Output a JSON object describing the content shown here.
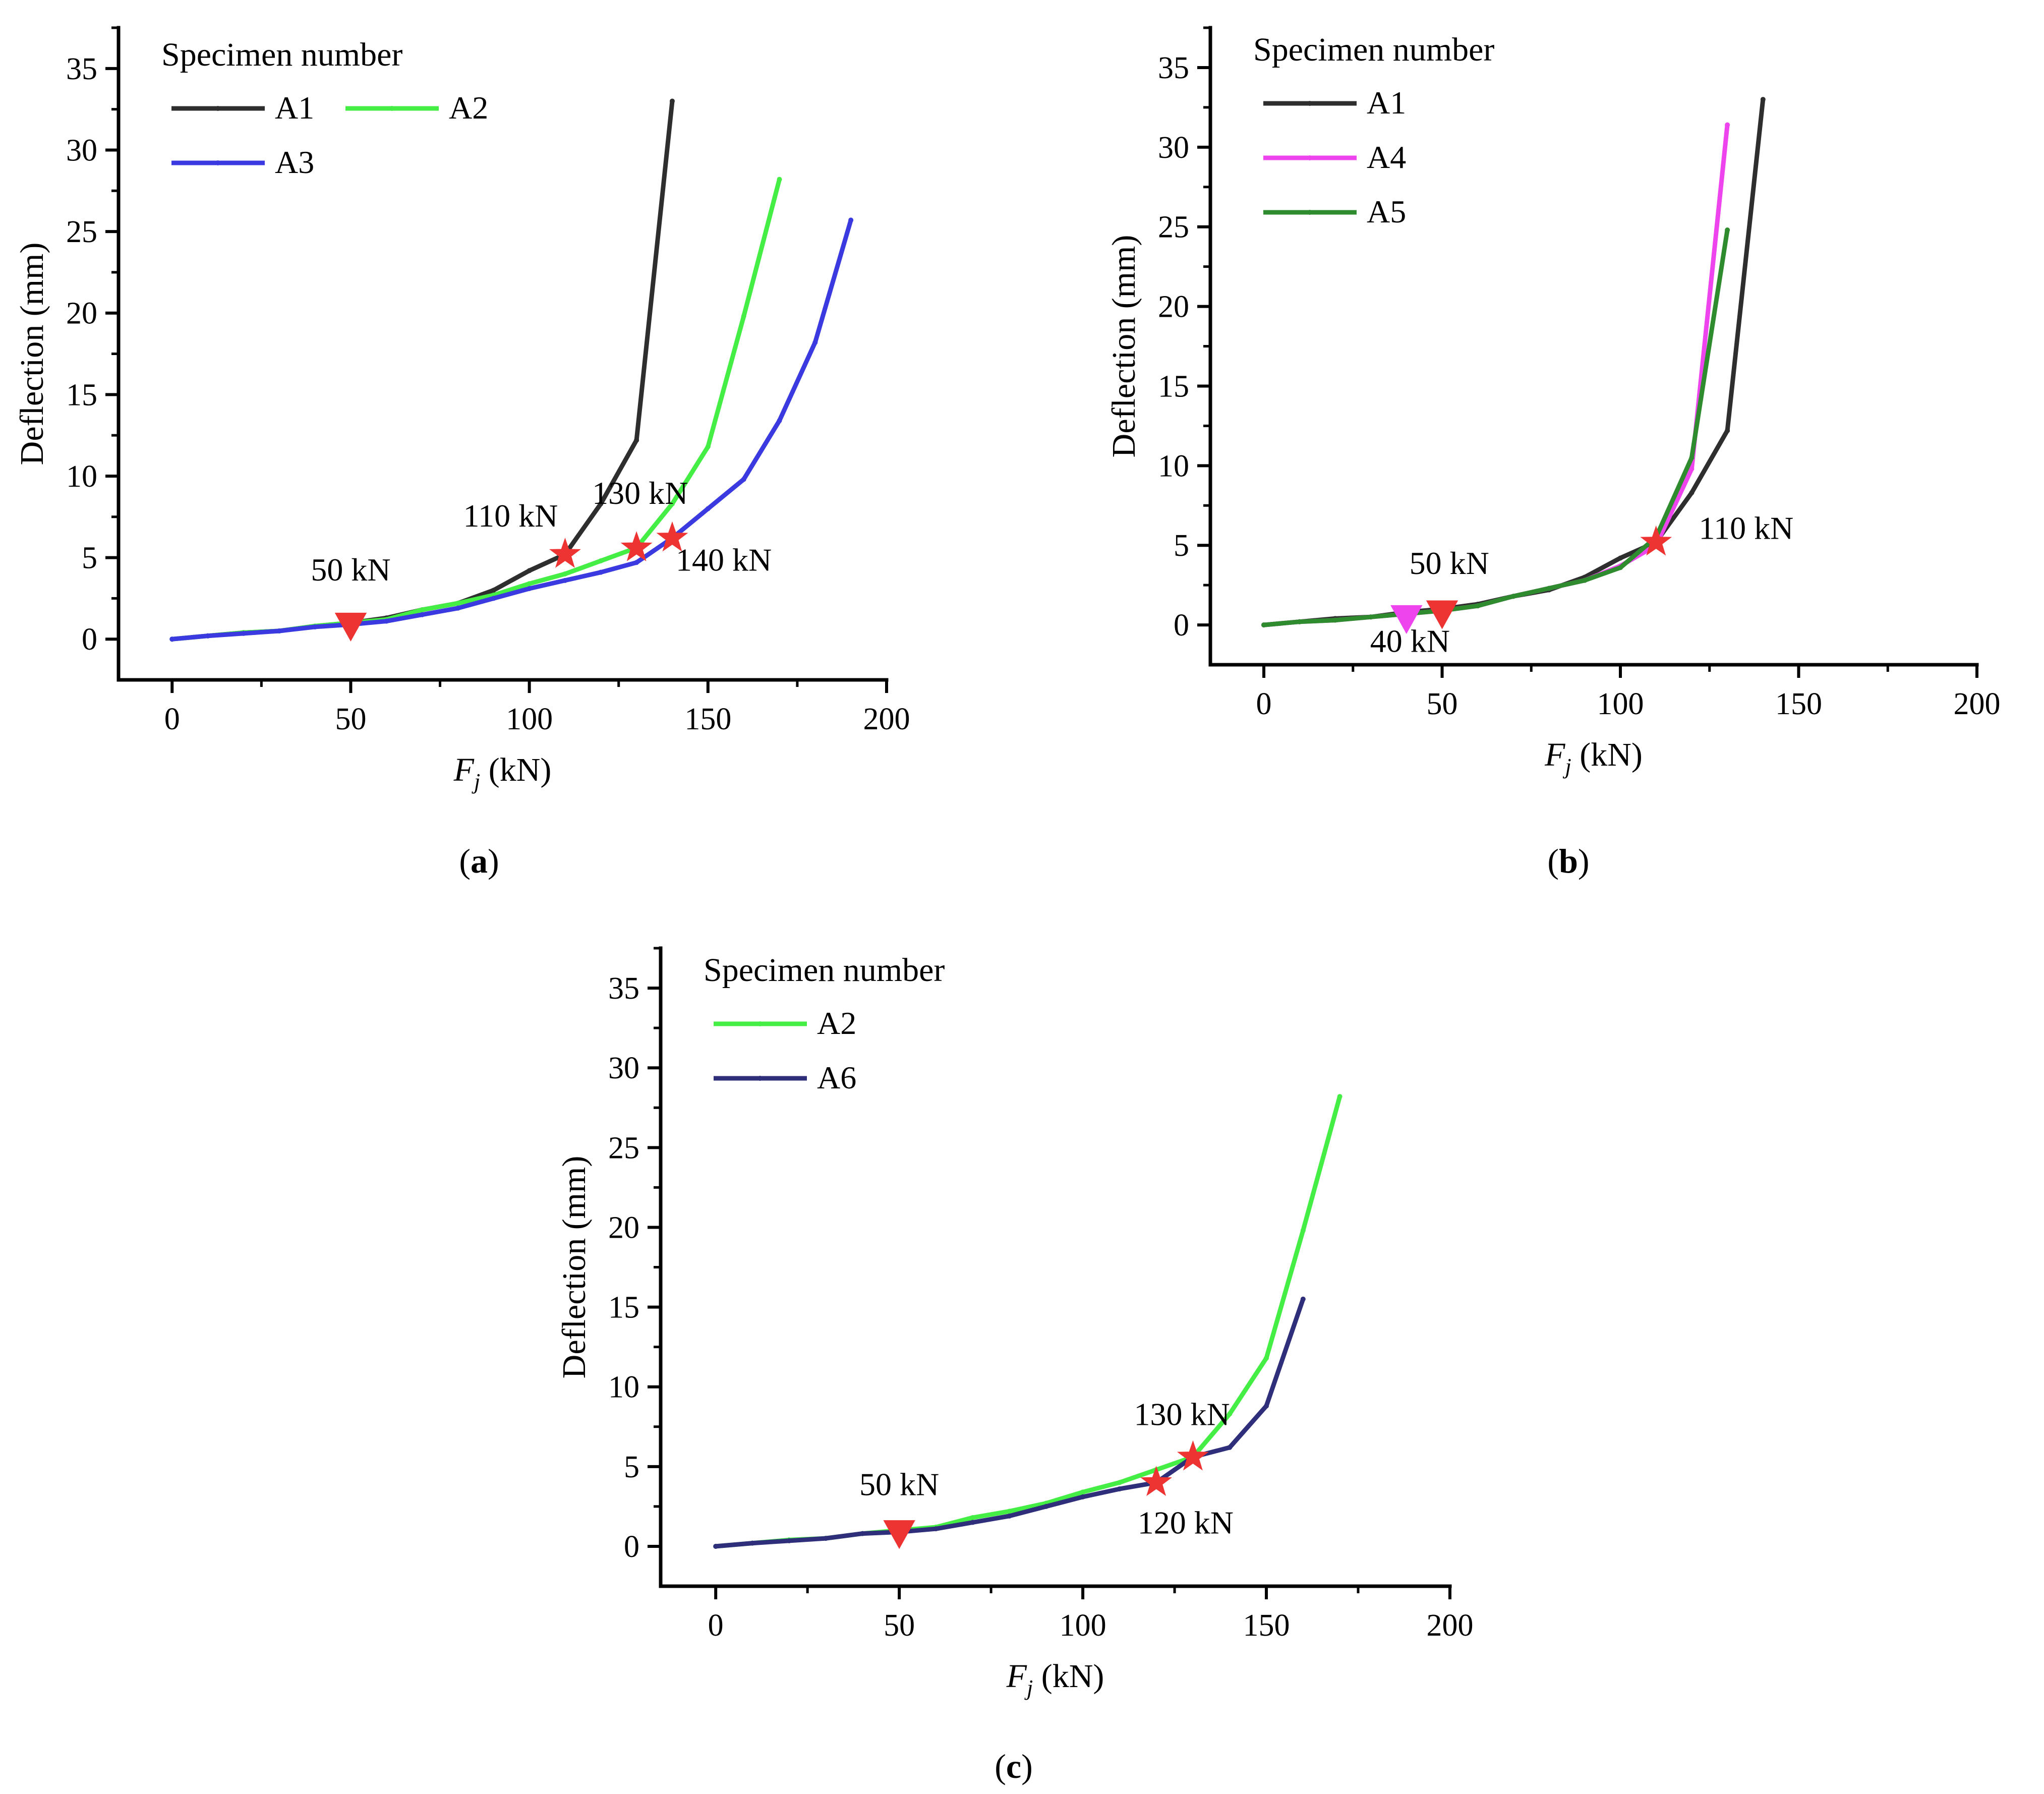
{
  "chart_data": [
    {
      "type": "line",
      "panel_label": "(a)",
      "panel_letter": "a",
      "xlabel": "Fj (kN)",
      "xlabel_var": "F",
      "xlabel_sub": "j",
      "xlabel_unit": " (kN)",
      "ylabel": "Deflection (mm)",
      "xlim": [
        -15,
        200
      ],
      "ylim": [
        -2.5,
        37.5
      ],
      "xticks": [
        0,
        50,
        100,
        150,
        200
      ],
      "yticks": [
        0,
        5,
        10,
        15,
        20,
        25,
        30,
        35
      ],
      "legend_title": "Specimen number",
      "legend_position": "top-left",
      "series": [
        {
          "name": "A1",
          "color": "#2e2e2e",
          "x": [
            0,
            10,
            20,
            30,
            40,
            50,
            60,
            70,
            80,
            90,
            100,
            110,
            120,
            130,
            140
          ],
          "y": [
            0,
            0.2,
            0.4,
            0.5,
            0.8,
            1.0,
            1.3,
            1.8,
            2.2,
            3.0,
            4.2,
            5.2,
            8.3,
            12.2,
            33.0
          ]
        },
        {
          "name": "A2",
          "color": "#44ee44",
          "x": [
            0,
            10,
            20,
            30,
            40,
            50,
            60,
            70,
            80,
            90,
            100,
            110,
            120,
            130,
            140,
            150,
            160,
            170
          ],
          "y": [
            0,
            0.2,
            0.4,
            0.5,
            0.8,
            1.0,
            1.2,
            1.8,
            2.2,
            2.7,
            3.4,
            4.0,
            4.8,
            5.6,
            8.3,
            11.8,
            19.8,
            28.2
          ]
        },
        {
          "name": "A3",
          "color": "#3a3ae0",
          "x": [
            0,
            10,
            20,
            30,
            40,
            50,
            60,
            70,
            80,
            90,
            100,
            110,
            120,
            130,
            140,
            150,
            160,
            170,
            180,
            190
          ],
          "y": [
            0,
            0.2,
            0.35,
            0.5,
            0.75,
            0.9,
            1.1,
            1.5,
            1.9,
            2.5,
            3.1,
            3.6,
            4.1,
            4.7,
            6.2,
            8.0,
            9.8,
            13.4,
            18.2,
            25.7
          ]
        }
      ],
      "markers": [
        {
          "shape": "triangle",
          "x": 50,
          "y": 0.8,
          "label": "50 kN",
          "label_x": 50,
          "label_y": 3.6,
          "anchor": "middle"
        },
        {
          "shape": "star",
          "x": 110,
          "y": 5.2,
          "label": "110 kN",
          "label_x": 108,
          "label_y": 6.9,
          "anchor": "end"
        },
        {
          "shape": "star",
          "x": 130,
          "y": 5.6,
          "label": "130 kN",
          "label_x": 131,
          "label_y": 8.3,
          "anchor": "middle"
        },
        {
          "shape": "star",
          "x": 140,
          "y": 6.2,
          "label": "140 kN",
          "label_x": 141,
          "label_y": 4.2,
          "anchor": "start"
        }
      ]
    },
    {
      "type": "line",
      "panel_label": "(b)",
      "panel_letter": "b",
      "xlabel": "Fj (kN)",
      "xlabel_var": "F",
      "xlabel_sub": "j",
      "xlabel_unit": " (kN)",
      "ylabel": "Deflection (mm)",
      "xlim": [
        -15,
        200
      ],
      "ylim": [
        -2.5,
        37.5
      ],
      "xticks": [
        0,
        50,
        100,
        150,
        200
      ],
      "yticks": [
        0,
        5,
        10,
        15,
        20,
        25,
        30,
        35
      ],
      "legend_title": "Specimen number",
      "legend_position": "top-left",
      "series": [
        {
          "name": "A1",
          "color": "#2e2e2e",
          "x": [
            0,
            10,
            20,
            30,
            40,
            50,
            60,
            70,
            80,
            90,
            100,
            110,
            120,
            130,
            140
          ],
          "y": [
            0,
            0.2,
            0.4,
            0.5,
            0.8,
            1.0,
            1.3,
            1.8,
            2.2,
            3.0,
            4.2,
            5.2,
            8.3,
            12.2,
            33.0
          ]
        },
        {
          "name": "A4",
          "color": "#ee44ee",
          "x": [
            0,
            10,
            20,
            30,
            40,
            50,
            60,
            70,
            80,
            90,
            100,
            110,
            120,
            130
          ],
          "y": [
            0,
            0.2,
            0.3,
            0.5,
            0.7,
            0.9,
            1.2,
            1.8,
            2.3,
            2.8,
            3.7,
            5.0,
            9.8,
            31.4
          ]
        },
        {
          "name": "A5",
          "color": "#2e8b2e",
          "x": [
            0,
            10,
            20,
            30,
            40,
            50,
            60,
            70,
            80,
            90,
            100,
            110,
            120,
            130
          ],
          "y": [
            0,
            0.2,
            0.3,
            0.5,
            0.7,
            0.9,
            1.2,
            1.8,
            2.3,
            2.8,
            3.6,
            5.5,
            10.5,
            24.8
          ]
        }
      ],
      "markers": [
        {
          "shape": "triangle",
          "x": 40,
          "y": 0.4,
          "label": "40 kN",
          "label_x": 41,
          "label_y": -1.7,
          "anchor": "middle",
          "color": "#ee44ee"
        },
        {
          "shape": "triangle",
          "x": 50,
          "y": 0.7,
          "label": "50 kN",
          "label_x": 52,
          "label_y": 3.2,
          "anchor": "middle"
        },
        {
          "shape": "star",
          "x": 110,
          "y": 5.2,
          "label": "110 kN",
          "label_x": 122,
          "label_y": 5.4,
          "anchor": "start"
        }
      ]
    },
    {
      "type": "line",
      "panel_label": "(c)",
      "panel_letter": "c",
      "xlabel": "Fj (kN)",
      "xlabel_var": "F",
      "xlabel_sub": "j",
      "xlabel_unit": " (kN)",
      "ylabel": "Deflection (mm)",
      "xlim": [
        -15,
        200
      ],
      "ylim": [
        -2.5,
        37.5
      ],
      "xticks": [
        0,
        50,
        100,
        150,
        200
      ],
      "yticks": [
        0,
        5,
        10,
        15,
        20,
        25,
        30,
        35
      ],
      "legend_title": "Specimen number",
      "legend_position": "top-left",
      "series": [
        {
          "name": "A2",
          "color": "#44ee44",
          "x": [
            0,
            10,
            20,
            30,
            40,
            50,
            60,
            70,
            80,
            90,
            100,
            110,
            120,
            130,
            140,
            150,
            160,
            170
          ],
          "y": [
            0,
            0.2,
            0.4,
            0.5,
            0.8,
            1.0,
            1.2,
            1.8,
            2.2,
            2.7,
            3.4,
            4.0,
            4.8,
            5.6,
            8.3,
            11.8,
            19.8,
            28.2
          ]
        },
        {
          "name": "A6",
          "color": "#2e2e7a",
          "x": [
            0,
            10,
            20,
            30,
            40,
            50,
            60,
            70,
            80,
            90,
            100,
            110,
            120,
            130,
            140,
            150,
            160
          ],
          "y": [
            0,
            0.2,
            0.35,
            0.5,
            0.8,
            0.9,
            1.1,
            1.5,
            1.9,
            2.5,
            3.1,
            3.6,
            4.0,
            5.6,
            6.2,
            8.8,
            15.5
          ]
        }
      ],
      "markers": [
        {
          "shape": "triangle",
          "x": 50,
          "y": 0.8,
          "label": "50 kN",
          "label_x": 50,
          "label_y": 3.2,
          "anchor": "middle"
        },
        {
          "shape": "star",
          "x": 130,
          "y": 5.6,
          "label": "130 kN",
          "label_x": 127,
          "label_y": 7.6,
          "anchor": "middle"
        },
        {
          "shape": "star",
          "x": 120,
          "y": 4.0,
          "label": "120 kN",
          "label_x": 128,
          "label_y": 0.8,
          "anchor": "middle"
        }
      ]
    }
  ]
}
